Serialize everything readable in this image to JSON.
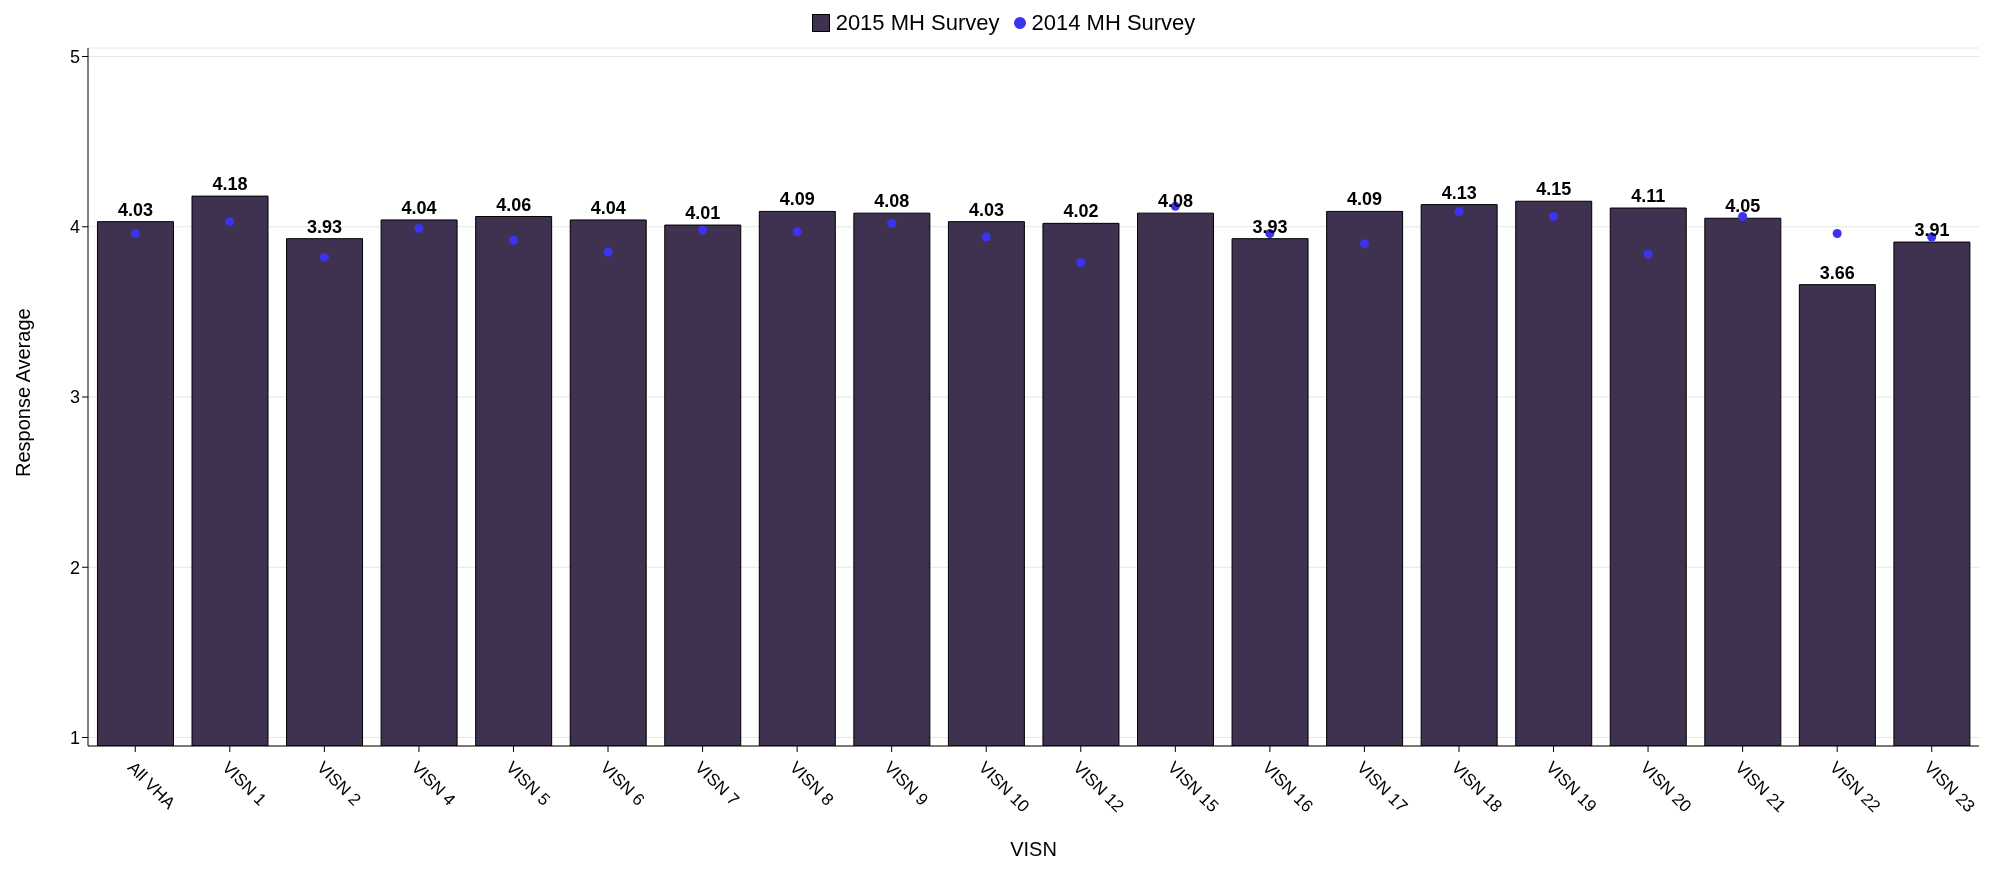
{
  "chart_data": {
    "type": "bar",
    "xlabel": "VISN",
    "ylabel": "Response Average",
    "categories": [
      "All VHA",
      "VISN 1",
      "VISN 2",
      "VISN 4",
      "VISN 5",
      "VISN 6",
      "VISN 7",
      "VISN 8",
      "VISN 9",
      "VISN 10",
      "VISN 12",
      "VISN 15",
      "VISN 16",
      "VISN 17",
      "VISN 18",
      "VISN 19",
      "VISN 20",
      "VISN 21",
      "VISN 22",
      "VISN 23"
    ],
    "series": [
      {
        "name": "2015 MH Survey",
        "color": "#3f3150",
        "values": [
          4.03,
          4.18,
          3.93,
          4.04,
          4.06,
          4.04,
          4.01,
          4.09,
          4.08,
          4.03,
          4.02,
          4.08,
          3.93,
          4.09,
          4.13,
          4.15,
          4.11,
          4.05,
          3.66,
          3.91
        ],
        "value_labels": [
          "4.03",
          "4.18",
          "3.93",
          "4.04",
          "4.06",
          "4.04",
          "4.01",
          "4.09",
          "4.08",
          "4.03",
          "4.02",
          "4.08",
          "3.93",
          "4.09",
          "4.13",
          "4.15",
          "4.11",
          "4.05",
          "3.66",
          "3.91"
        ]
      },
      {
        "name": "2014 MH Survey",
        "type": "scatter",
        "color": "#3b33f0",
        "values": [
          3.96,
          4.03,
          3.82,
          3.99,
          3.92,
          3.85,
          3.98,
          3.97,
          4.02,
          3.94,
          3.79,
          4.12,
          3.96,
          3.9,
          4.09,
          4.06,
          3.84,
          4.06,
          3.96,
          3.94
        ]
      }
    ],
    "ylim": [
      0.95,
      5.05
    ],
    "yticks": [
      1,
      2,
      3,
      4,
      5
    ],
    "grid": "y",
    "legend": "top",
    "marker": "circle"
  }
}
